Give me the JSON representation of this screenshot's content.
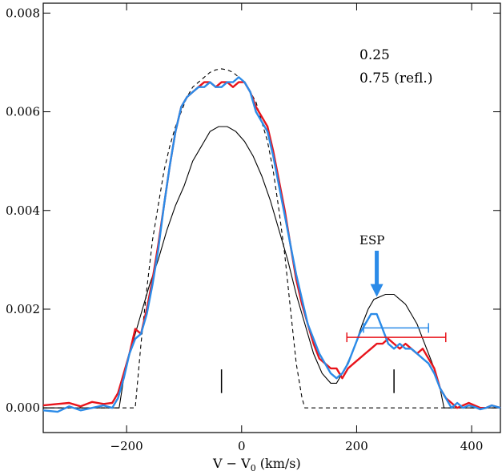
{
  "chart_data": {
    "type": "line",
    "xlabel": "V − V",
    "xlabel_sub": "0",
    "xlabel_tail": " (km/s)",
    "ylabel": "",
    "xlim": [
      -345,
      450
    ],
    "ylim": [
      -0.0005,
      0.0082
    ],
    "x_ticks": [
      {
        "value": -200,
        "label": "−200"
      },
      {
        "value": 0,
        "label": "0"
      },
      {
        "value": 200,
        "label": "200"
      },
      {
        "value": 400,
        "label": "400"
      }
    ],
    "y_ticks": [
      {
        "value": 0.0,
        "label": "0.000"
      },
      {
        "value": 0.002,
        "label": "0.002"
      },
      {
        "value": 0.004,
        "label": "0.004"
      },
      {
        "value": 0.006,
        "label": "0.006"
      },
      {
        "value": 0.008,
        "label": "0.008"
      }
    ],
    "legend": [
      {
        "name": "0.25",
        "color": "#e8141b"
      },
      {
        "name": "0.75 (refl.)",
        "color": "#2b8be8"
      }
    ],
    "legend_position": "top-right",
    "series": [
      {
        "name": "0.25",
        "color": "#e8141b",
        "x": [
          -345,
          -320,
          -300,
          -280,
          -260,
          -240,
          -225,
          -215,
          -205,
          -195,
          -185,
          -175,
          -165,
          -155,
          -145,
          -135,
          -125,
          -115,
          -105,
          -95,
          -85,
          -75,
          -65,
          -55,
          -45,
          -35,
          -25,
          -15,
          -5,
          5,
          15,
          25,
          35,
          45,
          55,
          65,
          75,
          85,
          95,
          105,
          115,
          125,
          135,
          145,
          155,
          165,
          175,
          185,
          195,
          205,
          215,
          225,
          235,
          245,
          255,
          265,
          275,
          285,
          295,
          305,
          315,
          325,
          335,
          345,
          355,
          365,
          375,
          385,
          395,
          405,
          415,
          425,
          435,
          450
        ],
        "y": [
          5e-05,
          8e-05,
          0.0001,
          3e-05,
          0.00012,
          8e-05,
          0.0001,
          0.0003,
          0.0007,
          0.0011,
          0.0016,
          0.0015,
          0.002,
          0.0026,
          0.0033,
          0.0041,
          0.0049,
          0.0056,
          0.0061,
          0.0063,
          0.0064,
          0.0065,
          0.0066,
          0.0066,
          0.0065,
          0.0066,
          0.0066,
          0.0065,
          0.0066,
          0.0066,
          0.0064,
          0.0061,
          0.0059,
          0.0057,
          0.0052,
          0.0046,
          0.004,
          0.0033,
          0.0026,
          0.0021,
          0.0017,
          0.0013,
          0.001,
          0.0009,
          0.0008,
          0.0008,
          0.0006,
          0.0008,
          0.0009,
          0.001,
          0.0011,
          0.0012,
          0.0013,
          0.0013,
          0.0014,
          0.0013,
          0.0012,
          0.0013,
          0.0012,
          0.0011,
          0.0012,
          0.001,
          0.0008,
          0.0004,
          0.0002,
          0.0001,
          0.0,
          5e-05,
          0.0001,
          5e-05,
          0.0,
          0.0,
          5e-05,
          0.0
        ]
      },
      {
        "name": "0.75 (refl.)",
        "color": "#2b8be8",
        "x": [
          -345,
          -320,
          -300,
          -280,
          -260,
          -240,
          -225,
          -215,
          -205,
          -195,
          -185,
          -175,
          -165,
          -155,
          -145,
          -135,
          -125,
          -115,
          -105,
          -95,
          -85,
          -75,
          -65,
          -55,
          -45,
          -35,
          -25,
          -15,
          -5,
          5,
          15,
          25,
          35,
          45,
          55,
          65,
          75,
          85,
          95,
          105,
          115,
          125,
          135,
          145,
          155,
          165,
          175,
          185,
          195,
          205,
          215,
          225,
          235,
          245,
          255,
          265,
          275,
          285,
          295,
          305,
          315,
          325,
          335,
          345,
          355,
          365,
          375,
          385,
          395,
          405,
          415,
          425,
          435,
          450
        ],
        "y": [
          -5e-05,
          -8e-05,
          3e-05,
          -5e-05,
          0.0,
          5e-05,
          0.0,
          0.0002,
          0.0006,
          0.0011,
          0.0014,
          0.0015,
          0.0019,
          0.0025,
          0.0032,
          0.0041,
          0.0049,
          0.0056,
          0.0061,
          0.0063,
          0.0064,
          0.0065,
          0.0065,
          0.0066,
          0.0065,
          0.0065,
          0.0066,
          0.0066,
          0.0067,
          0.0066,
          0.0064,
          0.006,
          0.0058,
          0.0056,
          0.0051,
          0.0045,
          0.0039,
          0.0033,
          0.0027,
          0.0022,
          0.0017,
          0.0014,
          0.0011,
          0.0009,
          0.0007,
          0.0006,
          0.0007,
          0.0009,
          0.0012,
          0.0015,
          0.0017,
          0.0019,
          0.0019,
          0.0016,
          0.0013,
          0.0012,
          0.0013,
          0.0012,
          0.0012,
          0.0011,
          0.001,
          0.0009,
          0.0007,
          0.0004,
          0.0002,
          0.0,
          0.0001,
          0.0,
          5e-05,
          2e-05,
          -3e-05,
          0.0,
          5e-05,
          0.0
        ]
      }
    ],
    "model_solid": {
      "color": "#000000",
      "style": "solid",
      "x": [
        -345,
        -213,
        -205,
        -195,
        -185,
        -175,
        -160,
        -145,
        -130,
        -115,
        -100,
        -85,
        -70,
        -55,
        -40,
        -35,
        -25,
        -10,
        5,
        20,
        35,
        50,
        65,
        80,
        95,
        110,
        125,
        140,
        155,
        165,
        180,
        195,
        210,
        220,
        230,
        240,
        250,
        260,
        265,
        275,
        285,
        295,
        305,
        315,
        325,
        335,
        345,
        352,
        450
      ],
      "y": [
        0,
        0,
        0.0006,
        0.0011,
        0.0015,
        0.0019,
        0.0025,
        0.003,
        0.0036,
        0.0041,
        0.0045,
        0.005,
        0.0053,
        0.0056,
        0.0057,
        0.0057,
        0.0057,
        0.0056,
        0.0054,
        0.0051,
        0.0047,
        0.0042,
        0.0036,
        0.003,
        0.0023,
        0.0017,
        0.0011,
        0.0007,
        0.0005,
        0.0005,
        0.0008,
        0.0012,
        0.0017,
        0.002,
        0.0022,
        0.00225,
        0.0023,
        0.0023,
        0.0023,
        0.0022,
        0.0021,
        0.0019,
        0.0017,
        0.0014,
        0.0011,
        0.0008,
        0.0004,
        0.0,
        0.0
      ]
    },
    "model_dashed": {
      "color": "#000000",
      "style": "dashed",
      "x": [
        -345,
        -185,
        -175,
        -165,
        -155,
        -145,
        -135,
        -125,
        -115,
        -105,
        -95,
        -85,
        -75,
        -65,
        -55,
        -45,
        -35,
        -25,
        -15,
        -5,
        5,
        15,
        25,
        35,
        45,
        55,
        65,
        75,
        85,
        95,
        105,
        110,
        120,
        450
      ],
      "y": [
        0,
        0,
        0.0013,
        0.0024,
        0.0034,
        0.0041,
        0.0048,
        0.0053,
        0.0057,
        0.006,
        0.0063,
        0.0065,
        0.0066,
        0.0067,
        0.0068,
        0.00685,
        0.00687,
        0.00685,
        0.0068,
        0.0067,
        0.0066,
        0.0064,
        0.0062,
        0.0058,
        0.0054,
        0.0048,
        0.004,
        0.0031,
        0.002,
        0.0009,
        0.0002,
        0.0,
        0.0,
        0.0
      ]
    },
    "tick_marks": [
      {
        "x": -35,
        "y_low": 0.0003,
        "y_high": 0.00078
      },
      {
        "x": 265,
        "y_low": 0.0003,
        "y_high": 0.00078
      }
    ],
    "error_bars": [
      {
        "color": "#e8141b",
        "x_low": 183,
        "x_high": 355,
        "y": 0.00143
      },
      {
        "color": "#2b8be8",
        "x_low": 212,
        "x_high": 325,
        "y": 0.00162
      }
    ],
    "annotation": {
      "text": "ESP",
      "color": "#2b8be8",
      "arrow_x": 235,
      "arrow_tip_y": 0.00225
    }
  }
}
